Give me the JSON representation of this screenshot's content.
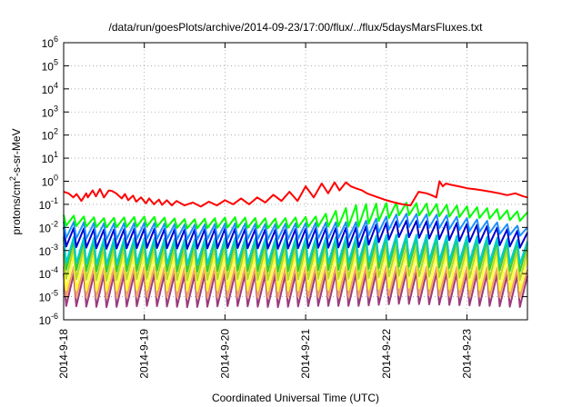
{
  "chart_data": {
    "type": "line",
    "title": "/data/run/goesPlots/archive/2014-09-23/17:00/flux/../flux/5daysMarsFluxes.txt",
    "xlabel": "Coordinated Universal Time (UTC)",
    "ylabel_base": "protons/cm",
    "ylabel_sup": "2",
    "ylabel_rest": "-s-sr-MeV",
    "y_scale": "log",
    "ylim": [
      1e-06,
      1000000.0
    ],
    "xlim_days": [
      0,
      5.75
    ],
    "y_ticks": [
      {
        "base": "10",
        "exp": "-6",
        "v": -6
      },
      {
        "base": "10",
        "exp": "-5",
        "v": -5
      },
      {
        "base": "10",
        "exp": "-4",
        "v": -4
      },
      {
        "base": "10",
        "exp": "-3",
        "v": -3
      },
      {
        "base": "10",
        "exp": "-2",
        "v": -2
      },
      {
        "base": "10",
        "exp": "-1",
        "v": -1
      },
      {
        "base": "10",
        "exp": "0",
        "v": 0
      },
      {
        "base": "10",
        "exp": "1",
        "v": 1
      },
      {
        "base": "10",
        "exp": "2",
        "v": 2
      },
      {
        "base": "10",
        "exp": "3",
        "v": 3
      },
      {
        "base": "10",
        "exp": "4",
        "v": 4
      },
      {
        "base": "10",
        "exp": "5",
        "v": 5
      },
      {
        "base": "10",
        "exp": "6",
        "v": 6
      }
    ],
    "x_ticks": [
      "2014-9-18",
      "2014-9-19",
      "2014-9-20",
      "2014-9-21",
      "2014-9-22",
      "2014-9-23"
    ],
    "grid": true,
    "series": [
      {
        "color": "#ff0000",
        "x": [
          0,
          0.06,
          0.12,
          0.16,
          0.22,
          0.28,
          0.3,
          0.36,
          0.4,
          0.45,
          0.5,
          0.56,
          0.6,
          0.65,
          0.72,
          0.76,
          0.8,
          0.86,
          0.9,
          0.96,
          1.02,
          1.06,
          1.12,
          1.18,
          1.22,
          1.28,
          1.34,
          1.4,
          1.5,
          1.6,
          1.7,
          1.8,
          1.9,
          2.0,
          2.1,
          2.2,
          2.3,
          2.4,
          2.5,
          2.6,
          2.7,
          2.8,
          2.9,
          3.0,
          3.1,
          3.2,
          3.28,
          3.36,
          3.42,
          3.5,
          3.56,
          3.62,
          3.7,
          3.76,
          3.82,
          3.9,
          4.0,
          4.1,
          4.2,
          4.3,
          4.4,
          4.5,
          4.56,
          4.62,
          4.66,
          4.7,
          4.74,
          4.8,
          4.9,
          5.0,
          5.1,
          5.2,
          5.3,
          5.4,
          5.5,
          5.6,
          5.7,
          5.75
        ],
        "y": [
          0.35,
          0.3,
          0.2,
          0.28,
          0.14,
          0.3,
          0.2,
          0.4,
          0.22,
          0.46,
          0.2,
          0.4,
          0.38,
          0.3,
          0.18,
          0.28,
          0.15,
          0.24,
          0.13,
          0.2,
          0.11,
          0.18,
          0.1,
          0.16,
          0.095,
          0.15,
          0.09,
          0.14,
          0.09,
          0.12,
          0.08,
          0.13,
          0.09,
          0.15,
          0.1,
          0.18,
          0.1,
          0.2,
          0.12,
          0.26,
          0.14,
          0.35,
          0.14,
          0.6,
          0.2,
          0.8,
          0.3,
          0.9,
          0.4,
          0.9,
          0.6,
          0.5,
          0.4,
          0.3,
          0.25,
          0.2,
          0.15,
          0.12,
          0.1,
          0.09,
          0.35,
          0.3,
          0.25,
          0.2,
          1.0,
          0.6,
          0.8,
          0.7,
          0.6,
          0.5,
          0.45,
          0.4,
          0.35,
          0.3,
          0.25,
          0.3,
          0.22,
          0.2
        ]
      }
    ],
    "sawtooth": [
      {
        "color": "#00ff00",
        "peak": [
          0.035,
          0.025,
          0.03,
          0.022,
          0.028,
          0.024,
          0.03,
          0.1,
          0.12,
          0.1,
          0.07,
          0.045
        ],
        "trough": [
          0.012,
          0.01,
          0.011,
          0.009,
          0.01,
          0.009,
          0.011,
          0.011,
          0.035,
          0.03,
          0.025,
          0.018
        ]
      },
      {
        "color": "#1e90ff",
        "peak": [
          0.018,
          0.015,
          0.016,
          0.013,
          0.015,
          0.014,
          0.016,
          0.017,
          0.04,
          0.035,
          0.02,
          0.01
        ],
        "trough": [
          0.0035,
          0.003,
          0.0032,
          0.003,
          0.0032,
          0.003,
          0.0033,
          0.0035,
          0.011,
          0.009,
          0.006,
          0.004
        ]
      },
      {
        "color": "#0000cd",
        "peak": [
          0.01,
          0.008,
          0.009,
          0.008,
          0.009,
          0.008,
          0.009,
          0.01,
          0.02,
          0.018,
          0.012,
          0.006
        ],
        "trough": [
          0.0015,
          0.0012,
          0.0013,
          0.0012,
          0.0013,
          0.0012,
          0.0013,
          0.0014,
          0.004,
          0.003,
          0.002,
          0.0012
        ]
      },
      {
        "color": "#00ced1",
        "peak": [
          0.004,
          0.0032,
          0.0035,
          0.003,
          0.0035,
          0.0032,
          0.0035,
          0.004,
          0.005,
          0.0045,
          0.004,
          0.0025
        ],
        "trough": [
          0.0003,
          0.00025,
          0.00028,
          0.00025,
          0.00028,
          0.00025,
          0.00028,
          0.0003,
          0.0004,
          0.00035,
          0.0003,
          0.00025
        ]
      },
      {
        "color": "#32cd32",
        "peak": [
          0.003,
          0.0025,
          0.0028,
          0.0025,
          0.0028,
          0.0025,
          0.0028,
          0.003,
          0.0035,
          0.003,
          0.0028,
          0.002
        ],
        "trough": [
          0.00015,
          0.00012,
          0.00014,
          0.00012,
          0.00014,
          0.00012,
          0.00014,
          0.00015,
          0.0002,
          0.00018,
          0.00015,
          0.00012
        ]
      },
      {
        "color": "#b5d62b",
        "peak": [
          0.0015,
          0.0012,
          0.0014,
          0.0012,
          0.0014,
          0.0012,
          0.0014,
          0.0015,
          0.0016,
          0.0015,
          0.0014,
          0.001
        ],
        "trough": [
          6e-05,
          5e-05,
          6e-05,
          5e-05,
          6e-05,
          5e-05,
          6e-05,
          6e-05,
          8e-05,
          7e-05,
          6e-05,
          5e-05
        ]
      },
      {
        "color": "#ffff33",
        "peak": [
          0.0007,
          0.0006,
          0.00065,
          0.0006,
          0.00065,
          0.0006,
          0.00065,
          0.0007,
          0.0008,
          0.00075,
          0.0007,
          0.0005
        ],
        "trough": [
          2e-05,
          1.8e-05,
          2e-05,
          1.8e-05,
          2e-05,
          1.8e-05,
          2e-05,
          2e-05,
          2.5e-05,
          2.2e-05,
          2e-05,
          1.8e-05
        ]
      },
      {
        "color": "#f4a460",
        "peak": [
          0.0002,
          0.00018,
          0.0002,
          0.00018,
          0.0002,
          0.00018,
          0.0002,
          0.0002,
          0.00022,
          0.0002,
          0.0002,
          0.00015
        ],
        "trough": [
          1e-05,
          9e-06,
          1e-05,
          9e-06,
          1e-05,
          9e-06,
          1e-05,
          1e-05,
          1.2e-05,
          1.1e-05,
          1e-05,
          9e-06
        ]
      },
      {
        "color": "#9b3b7d",
        "peak": [
          0.0001,
          9e-05,
          0.0001,
          9e-05,
          0.0001,
          9e-05,
          0.0001,
          0.0001,
          0.00012,
          0.00011,
          0.0001,
          8e-05
        ],
        "trough": [
          4e-06,
          3.5e-06,
          4e-06,
          3.5e-06,
          4e-06,
          3.5e-06,
          4e-06,
          4e-06,
          5e-06,
          4.5e-06,
          4e-06,
          3.5e-06
        ]
      }
    ],
    "teeth_per_day": 8
  }
}
